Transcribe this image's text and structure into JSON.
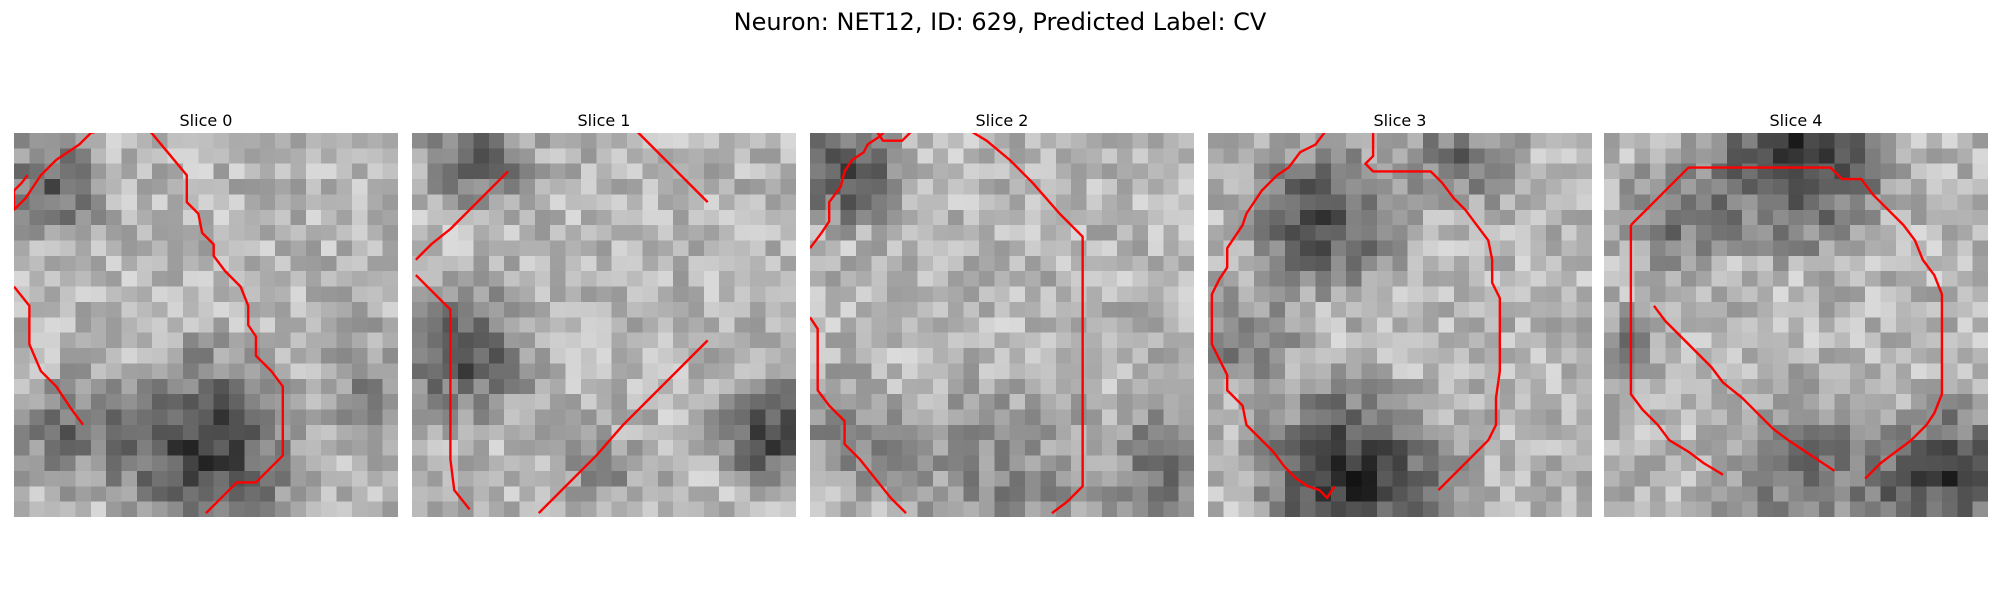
{
  "figure": {
    "title": "Neuron: NET12, ID: 629, Predicted Label: CV"
  },
  "panels": [
    {
      "title": "Slice 0"
    },
    {
      "title": "Slice 1"
    },
    {
      "title": "Slice 2"
    },
    {
      "title": "Slice 3"
    },
    {
      "title": "Slice 4"
    }
  ],
  "colors": {
    "contour": "#ff0000",
    "background": "#ffffff",
    "colormap": "gray"
  }
}
